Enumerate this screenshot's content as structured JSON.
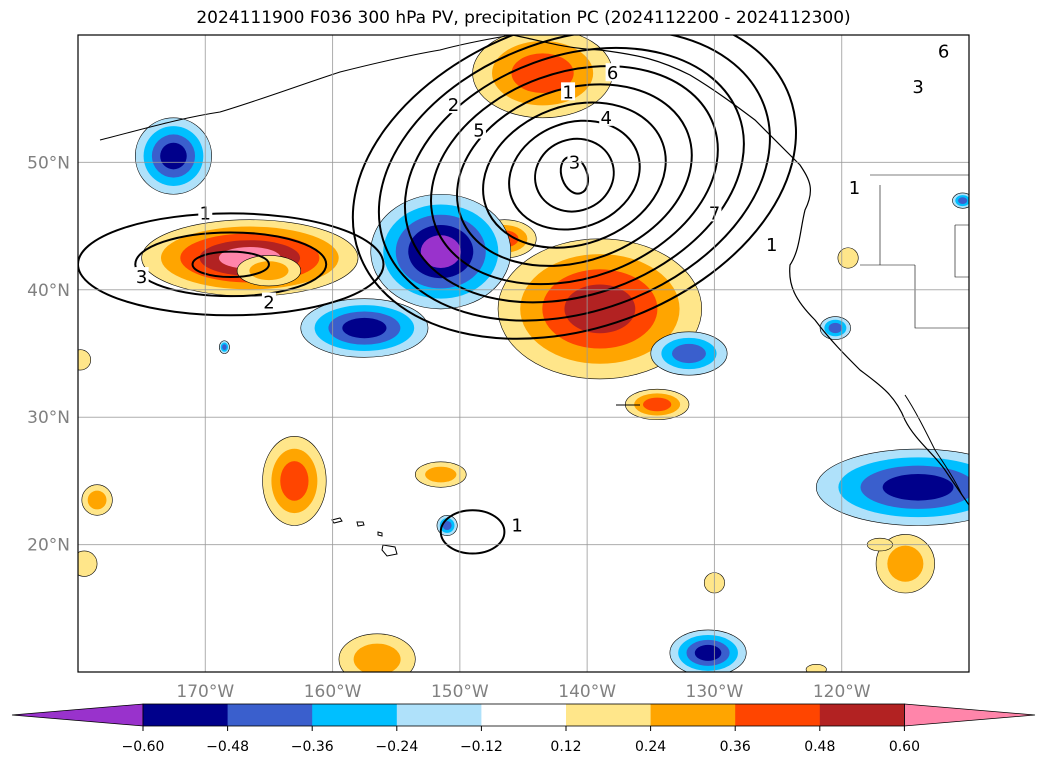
{
  "title": "2024111900 F036 300 hPa PV, precipitation PC (2024112200 - 2024112300)",
  "map": {
    "lon_range": [
      -180,
      -110
    ],
    "lat_range": [
      10,
      60
    ],
    "lon_ticks": [
      {
        "lon": -170,
        "label": "170°W"
      },
      {
        "lon": -160,
        "label": "160°W"
      },
      {
        "lon": -150,
        "label": "150°W"
      },
      {
        "lon": -140,
        "label": "140°W"
      },
      {
        "lon": -130,
        "label": "130°W"
      },
      {
        "lon": -120,
        "label": "120°W"
      }
    ],
    "lat_ticks": [
      {
        "lat": 20,
        "label": "20°N"
      },
      {
        "lat": 30,
        "label": "30°N"
      },
      {
        "lat": 40,
        "label": "40°N"
      },
      {
        "lat": 50,
        "label": "50°N"
      }
    ],
    "gridlines": true,
    "tick_label_color": "#808080"
  },
  "fields": {
    "precipitation_pc": {
      "positive_areas": [
        {
          "lon": -166.5,
          "lat": 42.5,
          "rx": 8.5,
          "ry": 3.0,
          "max_level": 0.6
        },
        {
          "lon": -139.0,
          "lat": 38.5,
          "rx": 8.0,
          "ry": 5.5,
          "max_level": 0.48
        },
        {
          "lon": -146.5,
          "lat": 44.0,
          "rx": 2.5,
          "ry": 1.5,
          "max_level": 0.36
        },
        {
          "lon": -143.5,
          "lat": 57.0,
          "rx": 5.5,
          "ry": 3.5,
          "max_level": 0.36
        },
        {
          "lon": -134.5,
          "lat": 31.0,
          "rx": 2.5,
          "ry": 1.2,
          "max_level": 0.36
        },
        {
          "lon": -163.0,
          "lat": 25.0,
          "rx": 2.5,
          "ry": 3.5,
          "max_level": 0.36
        },
        {
          "lon": -151.5,
          "lat": 25.5,
          "rx": 2.0,
          "ry": 1.0,
          "max_level": 0.24
        },
        {
          "lon": -165.0,
          "lat": 41.5,
          "rx": 2.5,
          "ry": 1.2,
          "max_level": 0.24
        },
        {
          "lon": -178.5,
          "lat": 23.5,
          "rx": 1.2,
          "ry": 1.2,
          "max_level": 0.24
        },
        {
          "lon": -115.0,
          "lat": 18.5,
          "rx": 2.3,
          "ry": 2.3,
          "max_level": 0.24
        },
        {
          "lon": -156.5,
          "lat": 11.0,
          "rx": 3.0,
          "ry": 2.0,
          "max_level": 0.24
        },
        {
          "lon": -179.5,
          "lat": 18.5,
          "rx": 1.0,
          "ry": 1.0,
          "max_level": 0.12
        },
        {
          "lon": -179.8,
          "lat": 34.5,
          "rx": 0.8,
          "ry": 0.8,
          "max_level": 0.12
        },
        {
          "lon": -130.0,
          "lat": 17.0,
          "rx": 0.8,
          "ry": 0.8,
          "max_level": 0.12
        },
        {
          "lon": -119.5,
          "lat": 42.5,
          "rx": 0.8,
          "ry": 0.8,
          "max_level": 0.12
        },
        {
          "lon": -117.0,
          "lat": 20.0,
          "rx": 1.0,
          "ry": 0.5,
          "max_level": 0.12
        },
        {
          "lon": -122.0,
          "lat": 10.2,
          "rx": 0.8,
          "ry": 0.4,
          "max_level": 0.12
        }
      ],
      "negative_areas": [
        {
          "lon": -151.5,
          "lat": 43.0,
          "rx": 5.5,
          "ry": 4.5,
          "min_level": -0.6
        },
        {
          "lon": -114.0,
          "lat": 24.5,
          "rx": 8.0,
          "ry": 3.0,
          "min_level": -0.48
        },
        {
          "lon": -157.5,
          "lat": 37.0,
          "rx": 5.0,
          "ry": 2.3,
          "min_level": -0.48
        },
        {
          "lon": -172.5,
          "lat": 50.5,
          "rx": 3.0,
          "ry": 3.0,
          "min_level": -0.48
        },
        {
          "lon": -130.5,
          "lat": 11.5,
          "rx": 3.0,
          "ry": 1.8,
          "min_level": -0.48
        },
        {
          "lon": -132.0,
          "lat": 35.0,
          "rx": 3.0,
          "ry": 1.7,
          "min_level": -0.36
        },
        {
          "lon": -120.5,
          "lat": 37.0,
          "rx": 1.2,
          "ry": 0.9,
          "min_level": -0.36
        },
        {
          "lon": -110.5,
          "lat": 47.0,
          "rx": 0.8,
          "ry": 0.6,
          "min_level": -0.36
        },
        {
          "lon": -151.0,
          "lat": 21.5,
          "rx": 0.8,
          "ry": 0.8,
          "min_level": -0.36
        },
        {
          "lon": -168.5,
          "lat": 35.5,
          "rx": 0.4,
          "ry": 0.5,
          "min_level": -0.36
        }
      ]
    },
    "pv_300hpa": {
      "contour_color": "#000000",
      "systems": [
        {
          "lon": -141.0,
          "lat": 49.0,
          "rx_inner": 1.0,
          "ry_inner": 1.5,
          "rx_outer": 18.0,
          "ry_outer": 12.0,
          "rot": -20,
          "values": [
            3,
            4,
            5,
            6,
            7,
            8,
            9,
            10,
            11
          ],
          "label_value_indices": [
            0,
            1,
            3
          ]
        },
        {
          "lon": -168.0,
          "lat": 42.0,
          "rx_inner": 3.0,
          "ry_inner": 1.0,
          "rx_outer": 12.0,
          "ry_outer": 4.0,
          "rot": 0,
          "values": [
            1,
            2,
            3
          ],
          "label_value_indices": [
            0,
            1,
            2
          ]
        },
        {
          "lon": -149.0,
          "lat": 21.0,
          "rx_inner": 2.5,
          "ry_inner": 1.7,
          "rx_outer": 2.5,
          "ry_outer": 1.7,
          "rot": 0,
          "values": [
            1
          ],
          "label_value_indices": [
            0
          ]
        }
      ],
      "labels": [
        {
          "lon": -170.0,
          "lat": 46.0,
          "text": "1"
        },
        {
          "lon": -165.0,
          "lat": 39.0,
          "text": "2"
        },
        {
          "lon": -175.0,
          "lat": 41.0,
          "text": "3"
        },
        {
          "lon": -150.5,
          "lat": 54.5,
          "text": "2"
        },
        {
          "lon": -148.5,
          "lat": 52.5,
          "text": "5"
        },
        {
          "lon": -141.5,
          "lat": 55.5,
          "text": "1"
        },
        {
          "lon": -138.0,
          "lat": 57.0,
          "text": "6"
        },
        {
          "lon": -138.5,
          "lat": 53.5,
          "text": "4"
        },
        {
          "lon": -141.0,
          "lat": 50.0,
          "text": "3"
        },
        {
          "lon": -130.0,
          "lat": 46.0,
          "text": "7"
        },
        {
          "lon": -125.5,
          "lat": 43.5,
          "text": "1"
        },
        {
          "lon": -114.0,
          "lat": 55.9,
          "text": "3"
        },
        {
          "lon": -112.0,
          "lat": 58.7,
          "text": "6"
        },
        {
          "lon": -119.0,
          "lat": 48.0,
          "text": "1"
        },
        {
          "lon": -145.5,
          "lat": 21.5,
          "text": "1"
        }
      ]
    }
  },
  "colorbar": {
    "levels": [
      "−0.60",
      "−0.48",
      "−0.36",
      "−0.24",
      "−0.12",
      "0.12",
      "0.24",
      "0.36",
      "0.48",
      "0.60"
    ],
    "colors": [
      "#9932cc",
      "#00008b",
      "#3a5fcd",
      "#00bfff",
      "#afe1fa",
      "#ffffff",
      "#ffe68a",
      "#ffa500",
      "#ff4500",
      "#b22222",
      "#ff85aa"
    ],
    "extend": "both"
  }
}
